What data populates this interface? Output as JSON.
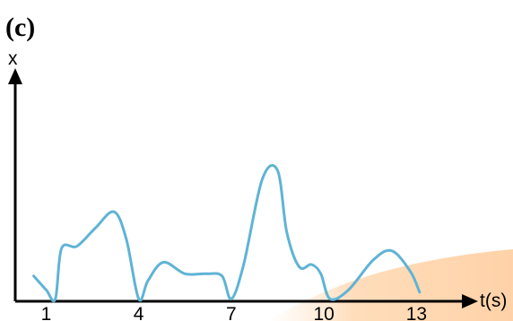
{
  "panel_label": "(c)",
  "chart_data": {
    "type": "line",
    "title": "",
    "xlabel": "t(s)",
    "ylabel": "x",
    "x_ticks": [
      1,
      4,
      7,
      10,
      13
    ],
    "x_tick_labels": [
      "1",
      "4",
      "7",
      "10",
      "13"
    ],
    "xlim": [
      0,
      14.5
    ],
    "ylim": [
      0,
      10
    ],
    "grid": false,
    "legend": "none",
    "series": [
      {
        "color": "#5fb3d6",
        "x": [
          0.6,
          1.0,
          1.3,
          1.5,
          2.0,
          2.6,
          3.2,
          3.6,
          4.0,
          4.3,
          4.8,
          5.5,
          6.2,
          6.7,
          7.0,
          7.4,
          8.0,
          8.5,
          8.8,
          9.2,
          9.6,
          9.9,
          10.2,
          10.8,
          11.6,
          12.2,
          12.8,
          13.1
        ],
        "y": [
          1.1,
          0.5,
          0.1,
          2.3,
          2.4,
          3.2,
          3.9,
          2.7,
          0.1,
          0.9,
          1.7,
          1.2,
          1.2,
          1.1,
          0.1,
          1.6,
          5.3,
          5.7,
          3.0,
          1.5,
          1.6,
          1.2,
          0.1,
          0.5,
          1.8,
          2.2,
          1.3,
          0.4
        ]
      }
    ],
    "background_accent": "#ffd9b3",
    "axis_color": "#000000"
  }
}
